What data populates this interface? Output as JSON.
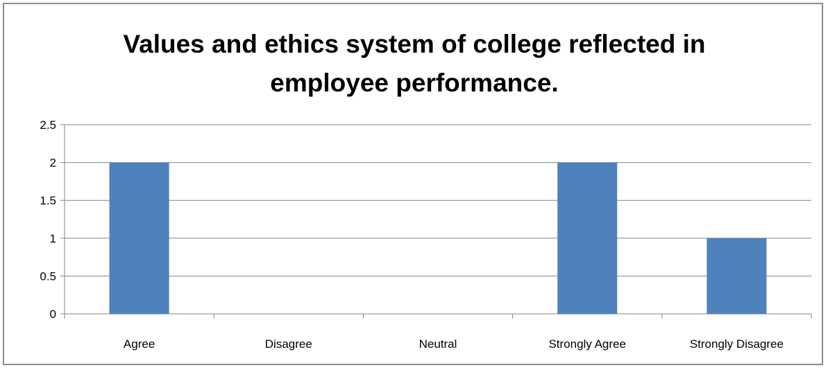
{
  "chart_data": {
    "type": "bar",
    "title_lines": [
      "Values and ethics system of college reflected in",
      "employee performance."
    ],
    "categories": [
      "Agree",
      "Disagree",
      "Neutral",
      "Strongly Agree",
      "Strongly Disagree"
    ],
    "values": [
      2,
      0,
      0,
      2,
      1
    ],
    "yticks": [
      "0",
      "0.5",
      "1",
      "1.5",
      "2",
      "2.5"
    ],
    "ylim": [
      0,
      2.5
    ],
    "grid": true,
    "legend": "none",
    "bar_color": "#4f81bd",
    "xlabel": "",
    "ylabel": ""
  }
}
